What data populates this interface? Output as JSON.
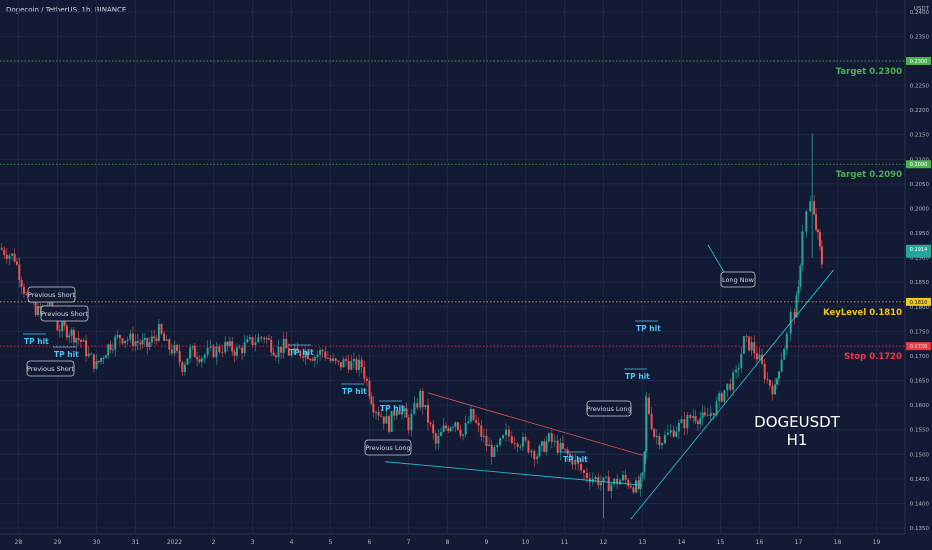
{
  "header": {
    "title": "Dogecoin / TetherUS, 1h, BINANCE"
  },
  "overlay": {
    "symbol": "DOGEUSDT",
    "timeframe": "H1"
  },
  "colors": {
    "bg": "#131a33",
    "up": "#26a69a",
    "down": "#ef5350",
    "target": "#4caf50",
    "key": "#f0c419",
    "stop": "#f23645",
    "trend": "#26c6da",
    "resistance": "#ef5350"
  },
  "chart_data": {
    "type": "candlestick",
    "title": "Dogecoin / TetherUS, 1h, BINANCE",
    "y_unit": "USDT",
    "ylim": [
      0.1345,
      0.242
    ],
    "x_ticks": [
      "28",
      "29",
      "30",
      "31",
      "2022",
      "2",
      "3",
      "4",
      "5",
      "6",
      "7",
      "8",
      "9",
      "10",
      "11",
      "12",
      "13",
      "14",
      "15",
      "16",
      "17",
      "18",
      "19"
    ],
    "y_ticks": [
      "0.2400",
      "0.2350",
      "0.2300",
      "0.2250",
      "0.2200",
      "0.2150",
      "0.2100",
      "0.2050",
      "0.2000",
      "0.1950",
      "0.1900",
      "0.1850",
      "0.1800",
      "0.1750",
      "0.1700",
      "0.1650",
      "0.1600",
      "0.1550",
      "0.1500",
      "0.1450",
      "0.1400",
      "0.1350"
    ],
    "price_path": [
      [
        27.5,
        0.192
      ],
      [
        27.9,
        0.19
      ],
      [
        28.2,
        0.182
      ],
      [
        28.5,
        0.179
      ],
      [
        28.8,
        0.181
      ],
      [
        29.0,
        0.176
      ],
      [
        29.3,
        0.175
      ],
      [
        29.6,
        0.173
      ],
      [
        29.8,
        0.17
      ],
      [
        30.0,
        0.168
      ],
      [
        30.3,
        0.172
      ],
      [
        30.6,
        0.174
      ],
      [
        31.0,
        0.173
      ],
      [
        31.3,
        0.172
      ],
      [
        31.6,
        0.175
      ],
      [
        31.8,
        0.172
      ],
      [
        32.0,
        0.171
      ],
      [
        32.2,
        0.168
      ],
      [
        32.4,
        0.171
      ],
      [
        32.7,
        0.17
      ],
      [
        33.0,
        0.171
      ],
      [
        33.3,
        0.172
      ],
      [
        33.6,
        0.171
      ],
      [
        34.0,
        0.173
      ],
      [
        34.3,
        0.174
      ],
      [
        34.6,
        0.171
      ],
      [
        34.8,
        0.172
      ],
      [
        35.0,
        0.17
      ],
      [
        35.3,
        0.171
      ],
      [
        35.6,
        0.17
      ],
      [
        35.8,
        0.171
      ],
      [
        36.0,
        0.169
      ],
      [
        36.2,
        0.168
      ],
      [
        36.4,
        0.169
      ],
      [
        36.6,
        0.168
      ],
      [
        36.8,
        0.168
      ],
      [
        37.0,
        0.163
      ],
      [
        37.1,
        0.16
      ],
      [
        37.3,
        0.158
      ],
      [
        37.5,
        0.156
      ],
      [
        37.7,
        0.16
      ],
      [
        37.9,
        0.158
      ],
      [
        38.0,
        0.156
      ],
      [
        38.3,
        0.162
      ],
      [
        38.5,
        0.157
      ],
      [
        38.7,
        0.152
      ],
      [
        38.9,
        0.155
      ],
      [
        39.2,
        0.157
      ],
      [
        39.4,
        0.154
      ],
      [
        39.6,
        0.158
      ],
      [
        39.8,
        0.155
      ],
      [
        40.0,
        0.152
      ],
      [
        40.2,
        0.15
      ],
      [
        40.5,
        0.154
      ],
      [
        40.8,
        0.153
      ],
      [
        41.0,
        0.152
      ],
      [
        41.3,
        0.15
      ],
      [
        41.6,
        0.153
      ],
      [
        41.9,
        0.151
      ],
      [
        42.2,
        0.149
      ],
      [
        42.5,
        0.146
      ],
      [
        42.8,
        0.145
      ],
      [
        43.0,
        0.144
      ],
      [
        43.2,
        0.144
      ],
      [
        43.5,
        0.145
      ],
      [
        43.7,
        0.144
      ],
      [
        43.9,
        0.143
      ],
      [
        44.0,
        0.145
      ],
      [
        44.05,
        0.15
      ],
      [
        44.1,
        0.161
      ],
      [
        44.3,
        0.154
      ],
      [
        44.5,
        0.153
      ],
      [
        44.8,
        0.155
      ],
      [
        45.0,
        0.156
      ],
      [
        45.3,
        0.158
      ],
      [
        45.6,
        0.157
      ],
      [
        45.9,
        0.16
      ],
      [
        46.1,
        0.163
      ],
      [
        46.4,
        0.166
      ],
      [
        46.6,
        0.173
      ],
      [
        46.8,
        0.172
      ],
      [
        47.0,
        0.169
      ],
      [
        47.2,
        0.165
      ],
      [
        47.4,
        0.163
      ],
      [
        47.5,
        0.168
      ],
      [
        47.7,
        0.174
      ],
      [
        47.8,
        0.178
      ],
      [
        47.9,
        0.179
      ],
      [
        48.0,
        0.183
      ],
      [
        48.1,
        0.196
      ],
      [
        48.2,
        0.199
      ],
      [
        48.3,
        0.201
      ],
      [
        48.4,
        0.198
      ],
      [
        48.5,
        0.194
      ],
      [
        48.6,
        0.189
      ]
    ],
    "annotations": [
      {
        "text": "Previous Short"
      },
      {
        "text": "Previous Short"
      },
      {
        "text": "Previous Short"
      },
      {
        "text": "TP hit"
      },
      {
        "text": "TP hit"
      },
      {
        "text": "TP hit"
      },
      {
        "text": "TP hit"
      },
      {
        "text": "TP hit"
      },
      {
        "text": "Previous Long"
      },
      {
        "text": "TP hit"
      },
      {
        "text": "Previous Long"
      },
      {
        "text": "TP hit"
      },
      {
        "text": "TP hit"
      },
      {
        "text": "Long Now"
      }
    ],
    "levels": [
      {
        "label": "Target 0.2300",
        "price": 0.23,
        "badge": "0.2300",
        "kind": "target"
      },
      {
        "label": "Target 0.2090",
        "price": 0.209,
        "badge": "0.2090",
        "kind": "target"
      },
      {
        "label": "KeyLevel 0.1810",
        "price": 0.181,
        "badge": "0.1810",
        "kind": "key"
      },
      {
        "label": "Stop 0.1720",
        "price": 0.172,
        "badge": "0.1720",
        "kind": "stop"
      }
    ],
    "current_price": {
      "price": 0.1914,
      "label": "0.1914"
    },
    "axis_units": "USDT"
  }
}
